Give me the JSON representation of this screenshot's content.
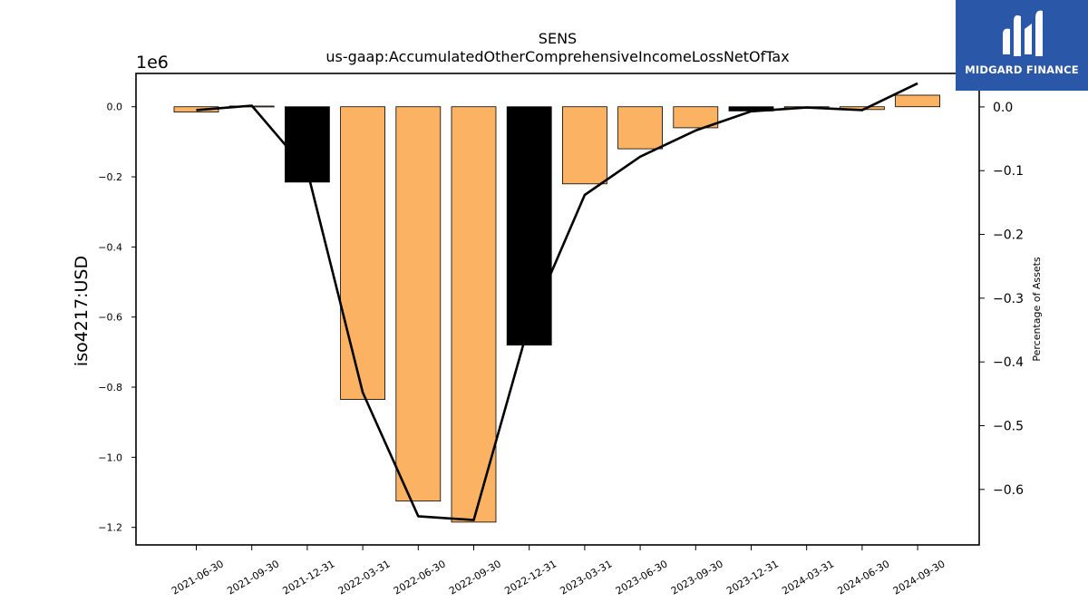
{
  "chart_data": {
    "type": "bar",
    "title": "SENS",
    "subtitle": "us-gaap:AccumulatedOtherComprehensiveIncomeLossNetOfTax",
    "ylabel": "iso4217:USD",
    "y_offset_label": "1e6",
    "y2label": "Percentage of Assets",
    "categories": [
      "2021-06-30",
      "2021-09-30",
      "2021-12-31",
      "2022-03-31",
      "2022-06-30",
      "2022-09-30",
      "2022-12-31",
      "2023-03-31",
      "2023-06-30",
      "2023-09-30",
      "2023-12-31",
      "2024-03-31",
      "2024-06-30",
      "2024-09-30"
    ],
    "series": [
      {
        "type": "bar",
        "values": [
          -15000,
          2000,
          -215000,
          -835000,
          -1125000,
          -1185000,
          -680000,
          -220000,
          -120000,
          -60000,
          -12000,
          -3000,
          -8000,
          33000
        ],
        "colors": [
          "#fbb363",
          "#fbb363",
          "#000000",
          "#fbb363",
          "#fbb363",
          "#fbb363",
          "#000000",
          "#fbb363",
          "#fbb363",
          "#fbb363",
          "#000000",
          "#fbb363",
          "#fbb363",
          "#fbb363"
        ]
      },
      {
        "type": "line",
        "axis": "right",
        "color": "#000000",
        "values": [
          -0.005,
          0.002,
          -0.1,
          -0.448,
          -0.642,
          -0.648,
          -0.34,
          -0.138,
          -0.078,
          -0.037,
          -0.007,
          -0.001,
          -0.005,
          0.037
        ]
      }
    ],
    "ylim": [
      -1250000,
      95000
    ],
    "yticks": [
      0,
      -200000,
      -400000,
      -600000,
      -800000,
      -1000000,
      -1200000
    ],
    "ytick_labels": [
      "0.0",
      "−0.2",
      "−0.4",
      "−0.6",
      "−0.8",
      "−1.0",
      "−1.2"
    ],
    "y2lim": [
      -0.687,
      0.0525
    ],
    "y2ticks": [
      0.0,
      -0.1,
      -0.2,
      -0.3,
      -0.4,
      -0.5,
      -0.6
    ],
    "y2tick_labels": [
      "0.0",
      "−0.1",
      "−0.2",
      "−0.3",
      "−0.4",
      "−0.5",
      "−0.6"
    ],
    "grid": false,
    "legend": "none"
  },
  "logo": {
    "text": "MIDGARD FINANCE",
    "background": "#2b57a8"
  }
}
